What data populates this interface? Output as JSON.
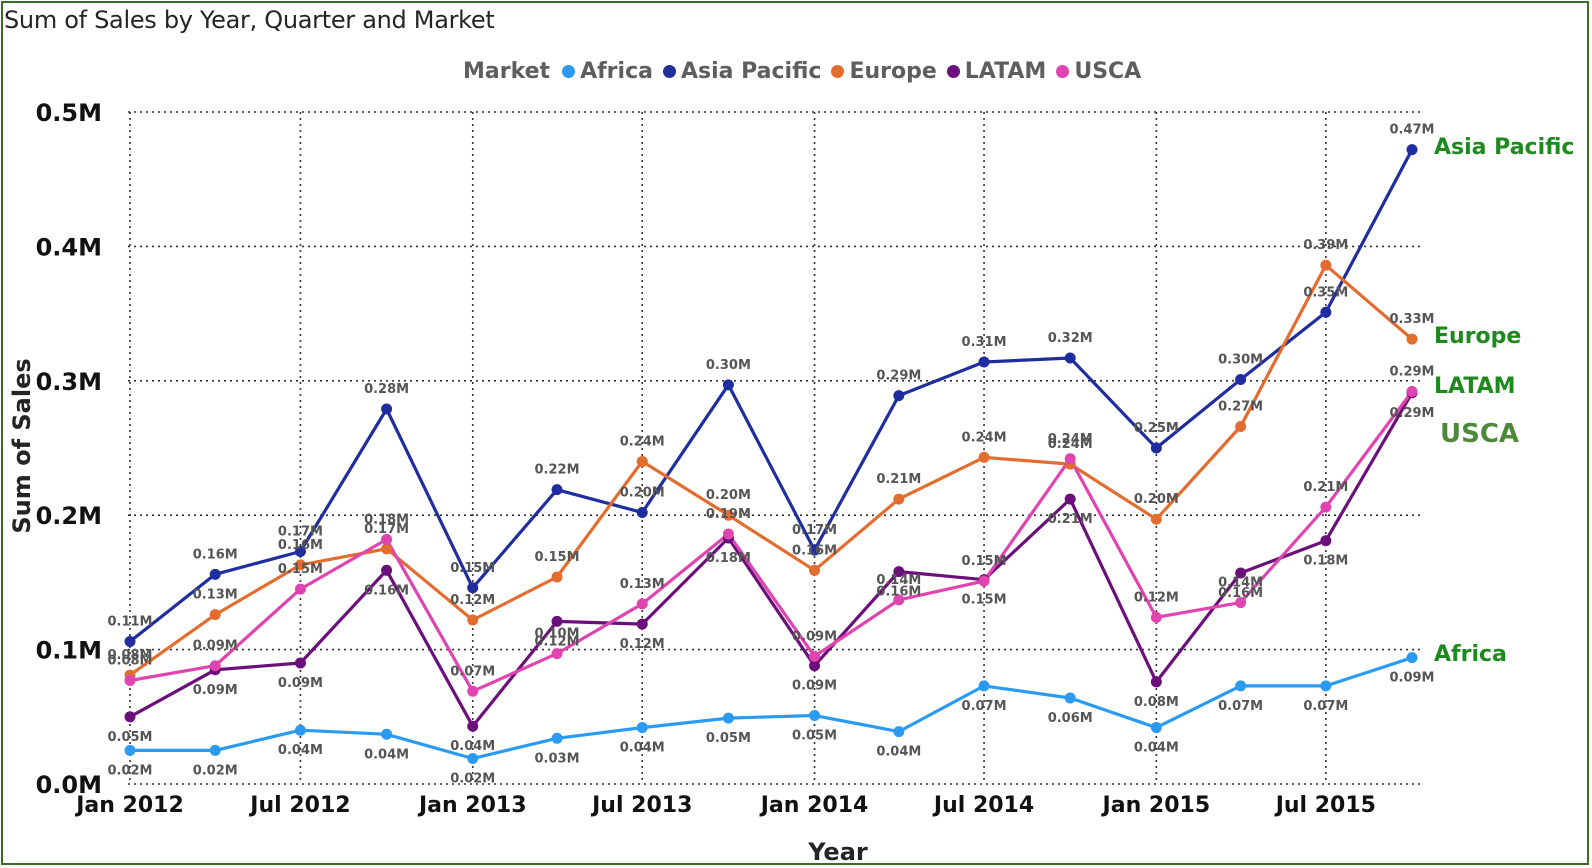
{
  "title": "Sum of Sales by Year, Quarter and Market",
  "legend": {
    "title": "Market",
    "items": [
      {
        "label": "Africa",
        "color": "#2b9af3"
      },
      {
        "label": "Asia Pacific",
        "color": "#1f2d9e"
      },
      {
        "label": "Europe",
        "color": "#e36c2f"
      },
      {
        "label": "LATAM",
        "color": "#6b0f7a"
      },
      {
        "label": "USCA",
        "color": "#e044b0"
      }
    ]
  },
  "end_labels": {
    "africa": "Africa",
    "asia_pacific": "Asia Pacific",
    "europe": "Europe",
    "latam": "LATAM",
    "usca": "USCA"
  },
  "chart_data": {
    "type": "line",
    "title": "Sum of Sales by Year, Quarter and Market",
    "xlabel": "Year",
    "ylabel": "Sum of Sales",
    "x": [
      "2012-01-01",
      "2012-04-01",
      "2012-07-01",
      "2012-10-01",
      "2013-01-01",
      "2013-04-01",
      "2013-07-01",
      "2013-10-01",
      "2014-01-01",
      "2014-04-01",
      "2014-07-01",
      "2014-10-01",
      "2015-01-01",
      "2015-04-01",
      "2015-07-01",
      "2015-10-01"
    ],
    "x_ticks": [
      "Jan 2012",
      "Jul 2012",
      "Jan 2013",
      "Jul 2013",
      "Jan 2014",
      "Jul 2014",
      "Jan 2015",
      "Jul 2015"
    ],
    "y_ticks": [
      "0.0M",
      "0.1M",
      "0.2M",
      "0.3M",
      "0.4M",
      "0.5M"
    ],
    "ylim": [
      0,
      0.5
    ],
    "grid": true,
    "legend_position": "top",
    "series": [
      {
        "name": "Africa",
        "color": "#2b9af3",
        "values": [
          0.025,
          0.025,
          0.04,
          0.037,
          0.019,
          0.034,
          0.042,
          0.049,
          0.051,
          0.039,
          0.073,
          0.064,
          0.042,
          0.073,
          0.073,
          0.094
        ],
        "labels": [
          "0.02M",
          "0.02M",
          "0.04M",
          "0.04M",
          "0.02M",
          "0.03M",
          "0.04M",
          "0.05M",
          "0.05M",
          "0.04M",
          "0.07M",
          "0.06M",
          "0.04M",
          "0.07M",
          "0.07M",
          "0.09M"
        ]
      },
      {
        "name": "Asia Pacific",
        "color": "#1f2d9e",
        "values": [
          0.106,
          0.156,
          0.173,
          0.279,
          0.146,
          0.219,
          0.202,
          0.297,
          0.174,
          0.289,
          0.314,
          0.317,
          0.25,
          0.301,
          0.351,
          0.472
        ],
        "labels": [
          "0.11M",
          "0.16M",
          "0.17M",
          "0.28M",
          "0.15M",
          "0.22M",
          "0.20M",
          "0.30M",
          "0.17M",
          "0.29M",
          "0.31M",
          "0.32M",
          "0.25M",
          "0.30M",
          "0.35M",
          "0.47M"
        ]
      },
      {
        "name": "Europe",
        "color": "#e36c2f",
        "values": [
          0.081,
          0.126,
          0.163,
          0.175,
          0.122,
          0.154,
          0.24,
          0.2,
          0.159,
          0.212,
          0.243,
          0.238,
          0.197,
          0.266,
          0.386,
          0.331
        ],
        "labels": [
          "0.08M",
          "0.13M",
          "0.16M",
          "0.17M",
          "0.12M",
          "0.15M",
          "0.24M",
          "0.20M",
          "0.16M",
          "0.21M",
          "0.24M",
          "0.24M",
          "0.20M",
          "0.27M",
          "0.39M",
          "0.33M"
        ]
      },
      {
        "name": "LATAM",
        "color": "#6b0f7a",
        "values": [
          0.05,
          0.085,
          0.09,
          0.159,
          0.043,
          0.121,
          0.119,
          0.183,
          0.088,
          0.158,
          0.152,
          0.212,
          0.076,
          0.157,
          0.181,
          0.291
        ],
        "labels": [
          "0.05M",
          "0.09M",
          "0.09M",
          "0.16M",
          "0.04M",
          "0.12M",
          "0.12M",
          "0.18M",
          "0.09M",
          "0.16M",
          "0.15M",
          "0.21M",
          "0.08M",
          "0.16M",
          "0.18M",
          "0.29M"
        ]
      },
      {
        "name": "USCA",
        "color": "#e044b0",
        "values": [
          0.077,
          0.088,
          0.145,
          0.182,
          0.069,
          0.097,
          0.134,
          0.186,
          0.095,
          0.137,
          0.151,
          0.242,
          0.124,
          0.135,
          0.206,
          0.292
        ],
        "labels": [
          "0.08M",
          "0.09M",
          "0.15M",
          "0.18M",
          "0.07M",
          "0.10M",
          "0.13M",
          "0.19M",
          "0.09M",
          "0.14M",
          "0.15M",
          "0.24M",
          "0.12M",
          "0.14M",
          "0.21M",
          "0.29M"
        ]
      }
    ]
  }
}
